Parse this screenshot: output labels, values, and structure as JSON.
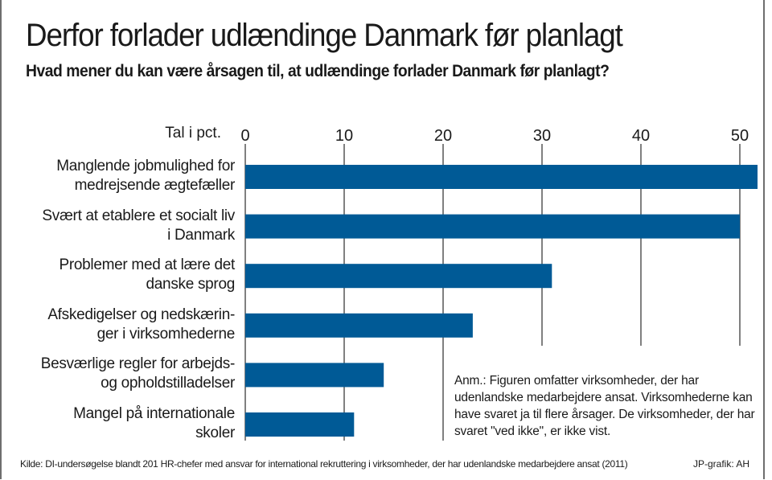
{
  "header": {
    "title": "Derfor forlader udlændinge Danmark før planlagt",
    "subtitle": "Hvad mener du kan være årsagen til, at udlændinge forlader Danmark før planlagt?"
  },
  "chart_data": {
    "type": "bar",
    "orientation": "horizontal",
    "title": "Derfor forlader udlændinge Danmark før planlagt",
    "subtitle": "Hvad mener du kan være årsagen til, at udlændinge forlader Danmark før planlagt?",
    "xlabel": "Tal i pct.",
    "ylabel": "",
    "xlim": [
      0,
      52
    ],
    "xticks": [
      0,
      10,
      20,
      30,
      40,
      50
    ],
    "xtick_labels": [
      "0",
      "10",
      "20",
      "30",
      "40",
      "50"
    ],
    "grid": true,
    "bar_color": "#005a96",
    "categories": [
      [
        "Manglende jobmulighed for",
        "medrejsende ægtefæller"
      ],
      [
        "Svært at etablere et socialt liv",
        "i Danmark"
      ],
      [
        "Problemer med at lære det",
        "danske sprog"
      ],
      [
        "Afskedigelser og nedskærin-",
        "ger i virksomhederne"
      ],
      [
        "Besværlige regler for arbejds-",
        "og opholdstilladelser"
      ],
      [
        "Mangel på internationale",
        "skoler"
      ]
    ],
    "values": [
      52,
      50,
      31,
      23,
      14,
      11
    ],
    "annotation": "Anm.: Figuren omfatter virksomheder, der har udenlandske medarbejdere ansat.  Virksomhederne kan have svaret ja til flere årsager.  De virksomheder, der har svaret \"ved ikke\", er ikke vist."
  },
  "footer": {
    "source": "Kilde: DI-undersøgelse blandt 201 HR-chefer med ansvar for international rekruttering i virksomheder, der har udenlandske medarbejdere ansat (2011)",
    "credit": "JP-grafik: AH"
  },
  "colors": {
    "bar": "#005a96",
    "gridline": "#3c3c3c",
    "text": "#1a1a1a"
  }
}
